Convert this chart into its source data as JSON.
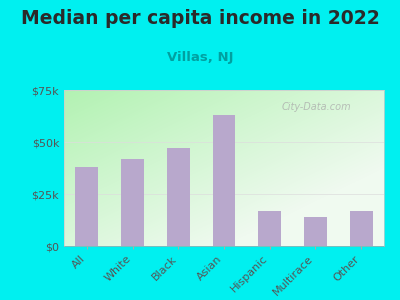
{
  "title": "Median per capita income in 2022",
  "subtitle": "Villas, NJ",
  "categories": [
    "All",
    "White",
    "Black",
    "Asian",
    "Hispanic",
    "Multirace",
    "Other"
  ],
  "values": [
    38000,
    42000,
    47000,
    63000,
    17000,
    14000,
    17000
  ],
  "bar_color": "#b8a8cc",
  "background_outer": "#00f0f0",
  "background_chart_topleft": "#d8f0d0",
  "background_chart_bottomright": "#f8fef8",
  "title_color": "#2a2a2a",
  "subtitle_color": "#00a0a0",
  "tick_color": "#555555",
  "ylim": [
    0,
    75000
  ],
  "yticks": [
    0,
    25000,
    50000,
    75000
  ],
  "ytick_labels": [
    "$0",
    "$25k",
    "$50k",
    "$75k"
  ],
  "watermark": "City-Data.com",
  "title_fontsize": 13.5,
  "subtitle_fontsize": 9.5,
  "tick_fontsize": 8,
  "bar_width": 0.5
}
